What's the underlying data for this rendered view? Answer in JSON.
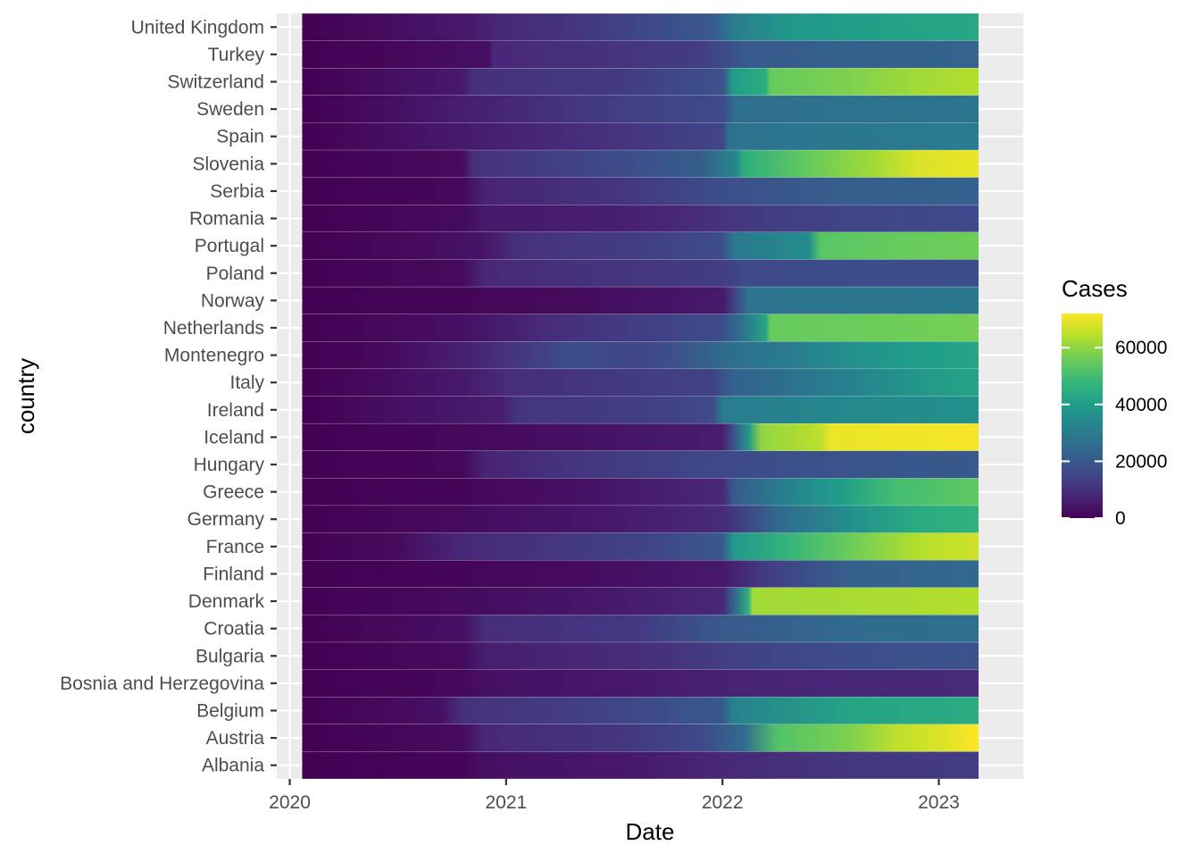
{
  "chart_data": {
    "type": "heatmap",
    "xlabel": "Date",
    "ylabel": "country",
    "x_ticks": [
      "2020",
      "2021",
      "2022",
      "2023"
    ],
    "x_range": [
      "2020-01-22",
      "2023-03-09"
    ],
    "legend": {
      "title": "Cases",
      "position": "right",
      "ticks": [
        0,
        20000,
        40000,
        60000
      ],
      "tick_labels": [
        "0",
        "20000",
        "40000",
        "60000"
      ],
      "max": 72000,
      "colormap": "viridis"
    },
    "grid": true,
    "colors": {
      "panel_background": "#EBEBEB",
      "grid": "#FFFFFF",
      "viridis": [
        "#440154",
        "#482878",
        "#3E4A89",
        "#31688E",
        "#26828E",
        "#1F9E89",
        "#35B779",
        "#6DCD59",
        "#B4DE2C",
        "#FDE725"
      ]
    },
    "countries": [
      "United Kingdom",
      "Turkey",
      "Switzerland",
      "Sweden",
      "Spain",
      "Slovenia",
      "Serbia",
      "Romania",
      "Portugal",
      "Poland",
      "Norway",
      "Netherlands",
      "Montenegro",
      "Italy",
      "Ireland",
      "Iceland",
      "Hungary",
      "Greece",
      "Germany",
      "France",
      "Finland",
      "Denmark",
      "Croatia",
      "Bulgaria",
      "Bosnia and Herzegovina",
      "Belgium",
      "Austria",
      "Albania"
    ],
    "series": [
      {
        "country": "United Kingdom",
        "values": [
          [
            2020.06,
            0
          ],
          [
            2020.4,
            2000
          ],
          [
            2020.8,
            5000
          ],
          [
            2021.0,
            8000
          ],
          [
            2021.3,
            11000
          ],
          [
            2021.6,
            15000
          ],
          [
            2021.95,
            20000
          ],
          [
            2022.05,
            30000
          ],
          [
            2022.3,
            38000
          ],
          [
            2022.6,
            40000
          ],
          [
            2022.9,
            42000
          ],
          [
            2023.19,
            43000
          ]
        ]
      },
      {
        "country": "Turkey",
        "values": [
          [
            2020.06,
            0
          ],
          [
            2020.5,
            1500
          ],
          [
            2020.92,
            3000
          ],
          [
            2020.94,
            8000
          ],
          [
            2021.4,
            10000
          ],
          [
            2021.9,
            13000
          ],
          [
            2022.1,
            20000
          ],
          [
            2022.6,
            22000
          ],
          [
            2023.19,
            23000
          ]
        ]
      },
      {
        "country": "Switzerland",
        "values": [
          [
            2020.06,
            0
          ],
          [
            2020.5,
            3000
          ],
          [
            2020.8,
            5000
          ],
          [
            2020.85,
            10000
          ],
          [
            2021.5,
            12000
          ],
          [
            2022.0,
            18000
          ],
          [
            2022.05,
            40000
          ],
          [
            2022.2,
            45000
          ],
          [
            2022.22,
            55000
          ],
          [
            2022.6,
            58000
          ],
          [
            2022.9,
            62000
          ],
          [
            2023.19,
            64000
          ]
        ]
      },
      {
        "country": "Sweden",
        "values": [
          [
            2020.06,
            0
          ],
          [
            2020.5,
            3000
          ],
          [
            2020.8,
            6000
          ],
          [
            2021.3,
            11000
          ],
          [
            2021.6,
            14000
          ],
          [
            2022.0,
            16000
          ],
          [
            2022.06,
            26000
          ],
          [
            2022.6,
            27000
          ],
          [
            2023.19,
            28000
          ]
        ]
      },
      {
        "country": "Spain",
        "values": [
          [
            2020.06,
            0
          ],
          [
            2020.5,
            3000
          ],
          [
            2020.9,
            6000
          ],
          [
            2021.2,
            8000
          ],
          [
            2021.55,
            11000
          ],
          [
            2022.0,
            15000
          ],
          [
            2022.03,
            27000
          ],
          [
            2022.6,
            29000
          ],
          [
            2023.19,
            30000
          ]
        ]
      },
      {
        "country": "Slovenia",
        "values": [
          [
            2020.06,
            0
          ],
          [
            2020.8,
            2000
          ],
          [
            2020.85,
            10000
          ],
          [
            2021.4,
            15000
          ],
          [
            2021.9,
            21000
          ],
          [
            2022.06,
            33000
          ],
          [
            2022.1,
            45000
          ],
          [
            2022.4,
            55000
          ],
          [
            2022.7,
            62000
          ],
          [
            2022.9,
            68000
          ],
          [
            2023.19,
            70000
          ]
        ]
      },
      {
        "country": "Serbia",
        "values": [
          [
            2020.06,
            0
          ],
          [
            2020.8,
            1500
          ],
          [
            2020.9,
            7000
          ],
          [
            2021.5,
            11000
          ],
          [
            2022.0,
            17000
          ],
          [
            2022.5,
            21000
          ],
          [
            2023.19,
            22000
          ]
        ]
      },
      {
        "country": "Romania",
        "values": [
          [
            2020.06,
            0
          ],
          [
            2020.8,
            2000
          ],
          [
            2020.9,
            5000
          ],
          [
            2021.5,
            6000
          ],
          [
            2021.8,
            8000
          ],
          [
            2022.1,
            12000
          ],
          [
            2022.6,
            15000
          ],
          [
            2023.19,
            16000
          ]
        ]
      },
      {
        "country": "Portugal",
        "values": [
          [
            2020.06,
            0
          ],
          [
            2020.6,
            2000
          ],
          [
            2020.9,
            4000
          ],
          [
            2021.05,
            10000
          ],
          [
            2021.6,
            13000
          ],
          [
            2022.0,
            17000
          ],
          [
            2022.05,
            29000
          ],
          [
            2022.4,
            35000
          ],
          [
            2022.45,
            53000
          ],
          [
            2022.8,
            55000
          ],
          [
            2023.19,
            56000
          ]
        ]
      },
      {
        "country": "Poland",
        "values": [
          [
            2020.06,
            0
          ],
          [
            2020.8,
            2000
          ],
          [
            2020.9,
            8000
          ],
          [
            2021.5,
            11000
          ],
          [
            2022.0,
            13000
          ],
          [
            2022.1,
            16000
          ],
          [
            2023.19,
            17000
          ]
        ]
      },
      {
        "country": "Norway",
        "values": [
          [
            2020.06,
            0
          ],
          [
            2020.8,
            1000
          ],
          [
            2021.3,
            2000
          ],
          [
            2022.0,
            5000
          ],
          [
            2022.06,
            15000
          ],
          [
            2022.12,
            27000
          ],
          [
            2022.6,
            28000
          ],
          [
            2023.19,
            29000
          ]
        ]
      },
      {
        "country": "Netherlands",
        "values": [
          [
            2020.06,
            0
          ],
          [
            2020.8,
            3000
          ],
          [
            2021.2,
            9000
          ],
          [
            2021.6,
            13000
          ],
          [
            2022.0,
            17000
          ],
          [
            2022.1,
            28000
          ],
          [
            2022.2,
            42000
          ],
          [
            2022.22,
            55000
          ],
          [
            2022.8,
            56000
          ],
          [
            2023.19,
            57000
          ]
        ]
      },
      {
        "country": "Montenegro",
        "values": [
          [
            2020.06,
            0
          ],
          [
            2020.4,
            1500
          ],
          [
            2020.7,
            5000
          ],
          [
            2021.0,
            10000
          ],
          [
            2021.3,
            17000
          ],
          [
            2021.6,
            15000
          ],
          [
            2021.8,
            18000
          ],
          [
            2022.0,
            25000
          ],
          [
            2022.3,
            30000
          ],
          [
            2022.6,
            36000
          ],
          [
            2022.9,
            40000
          ],
          [
            2023.19,
            42000
          ]
        ]
      },
      {
        "country": "Italy",
        "values": [
          [
            2020.06,
            0
          ],
          [
            2020.4,
            2000
          ],
          [
            2020.8,
            5000
          ],
          [
            2021.0,
            9000
          ],
          [
            2021.5,
            12000
          ],
          [
            2021.95,
            14000
          ],
          [
            2022.05,
            22000
          ],
          [
            2022.6,
            32000
          ],
          [
            2022.9,
            38000
          ],
          [
            2023.19,
            42000
          ]
        ]
      },
      {
        "country": "Ireland",
        "values": [
          [
            2020.06,
            0
          ],
          [
            2020.5,
            3000
          ],
          [
            2020.98,
            6000
          ],
          [
            2021.05,
            11000
          ],
          [
            2021.6,
            13000
          ],
          [
            2021.95,
            16000
          ],
          [
            2022.0,
            30000
          ],
          [
            2022.6,
            34000
          ],
          [
            2023.19,
            36000
          ]
        ]
      },
      {
        "country": "Iceland",
        "values": [
          [
            2020.06,
            0
          ],
          [
            2020.8,
            1500
          ],
          [
            2021.3,
            3000
          ],
          [
            2022.0,
            6000
          ],
          [
            2022.05,
            18000
          ],
          [
            2022.12,
            38000
          ],
          [
            2022.18,
            60000
          ],
          [
            2022.45,
            65000
          ],
          [
            2022.5,
            70000
          ],
          [
            2023.19,
            71000
          ]
        ]
      },
      {
        "country": "Hungary",
        "values": [
          [
            2020.06,
            0
          ],
          [
            2020.8,
            1500
          ],
          [
            2020.9,
            7000
          ],
          [
            2021.3,
            11000
          ],
          [
            2022.0,
            16000
          ],
          [
            2022.6,
            19000
          ],
          [
            2023.19,
            20000
          ]
        ]
      },
      {
        "country": "Greece",
        "values": [
          [
            2020.06,
            0
          ],
          [
            2020.8,
            1000
          ],
          [
            2021.3,
            3000
          ],
          [
            2022.0,
            8000
          ],
          [
            2022.05,
            20000
          ],
          [
            2022.3,
            32000
          ],
          [
            2022.55,
            40000
          ],
          [
            2022.8,
            50000
          ],
          [
            2023.19,
            54000
          ]
        ]
      },
      {
        "country": "Germany",
        "values": [
          [
            2020.06,
            0
          ],
          [
            2020.8,
            2000
          ],
          [
            2021.5,
            5000
          ],
          [
            2022.0,
            9000
          ],
          [
            2022.25,
            24000
          ],
          [
            2022.6,
            36000
          ],
          [
            2022.9,
            44000
          ],
          [
            2023.19,
            46000
          ]
        ]
      },
      {
        "country": "France",
        "values": [
          [
            2020.06,
            0
          ],
          [
            2020.5,
            2000
          ],
          [
            2020.8,
            8000
          ],
          [
            2021.3,
            12000
          ],
          [
            2021.7,
            15000
          ],
          [
            2022.0,
            20000
          ],
          [
            2022.05,
            38000
          ],
          [
            2022.3,
            47000
          ],
          [
            2022.6,
            56000
          ],
          [
            2022.9,
            64000
          ],
          [
            2023.19,
            67000
          ]
        ]
      },
      {
        "country": "Finland",
        "values": [
          [
            2020.06,
            0
          ],
          [
            2020.8,
            1000
          ],
          [
            2021.3,
            2000
          ],
          [
            2022.0,
            5000
          ],
          [
            2022.2,
            13000
          ],
          [
            2022.6,
            22000
          ],
          [
            2023.19,
            24000
          ]
        ]
      },
      {
        "country": "Denmark",
        "values": [
          [
            2020.06,
            0
          ],
          [
            2020.8,
            2000
          ],
          [
            2021.5,
            5000
          ],
          [
            2022.0,
            8000
          ],
          [
            2022.05,
            22000
          ],
          [
            2022.12,
            45000
          ],
          [
            2022.14,
            62000
          ],
          [
            2022.8,
            63000
          ],
          [
            2023.19,
            64000
          ]
        ]
      },
      {
        "country": "Croatia",
        "values": [
          [
            2020.06,
            0
          ],
          [
            2020.8,
            3000
          ],
          [
            2020.9,
            9000
          ],
          [
            2021.6,
            12000
          ],
          [
            2022.0,
            20000
          ],
          [
            2022.6,
            25000
          ],
          [
            2023.19,
            26000
          ]
        ]
      },
      {
        "country": "Bulgaria",
        "values": [
          [
            2020.06,
            0
          ],
          [
            2020.8,
            2000
          ],
          [
            2020.9,
            6000
          ],
          [
            2021.6,
            9000
          ],
          [
            2022.1,
            14000
          ],
          [
            2022.6,
            17000
          ],
          [
            2023.19,
            18000
          ]
        ]
      },
      {
        "country": "Bosnia and Herzegovina",
        "values": [
          [
            2020.06,
            0
          ],
          [
            2020.8,
            1500
          ],
          [
            2020.9,
            3000
          ],
          [
            2021.6,
            5000
          ],
          [
            2022.1,
            7000
          ],
          [
            2022.6,
            8000
          ],
          [
            2023.19,
            8500
          ]
        ]
      },
      {
        "country": "Belgium",
        "values": [
          [
            2020.06,
            0
          ],
          [
            2020.7,
            3000
          ],
          [
            2020.8,
            10000
          ],
          [
            2021.3,
            13000
          ],
          [
            2022.0,
            20000
          ],
          [
            2022.05,
            32000
          ],
          [
            2022.6,
            42000
          ],
          [
            2023.19,
            44000
          ]
        ]
      },
      {
        "country": "Austria",
        "values": [
          [
            2020.06,
            0
          ],
          [
            2020.8,
            2000
          ],
          [
            2020.9,
            8000
          ],
          [
            2021.5,
            11000
          ],
          [
            2021.9,
            16000
          ],
          [
            2022.1,
            25000
          ],
          [
            2022.25,
            52000
          ],
          [
            2022.6,
            58000
          ],
          [
            2022.8,
            65000
          ],
          [
            2023.0,
            68000
          ],
          [
            2023.19,
            72000
          ]
        ]
      },
      {
        "country": "Albania",
        "values": [
          [
            2020.06,
            0
          ],
          [
            2020.8,
            1000
          ],
          [
            2020.9,
            3000
          ],
          [
            2021.6,
            5000
          ],
          [
            2022.0,
            8000
          ],
          [
            2022.5,
            11000
          ],
          [
            2023.19,
            13000
          ]
        ]
      }
    ]
  }
}
